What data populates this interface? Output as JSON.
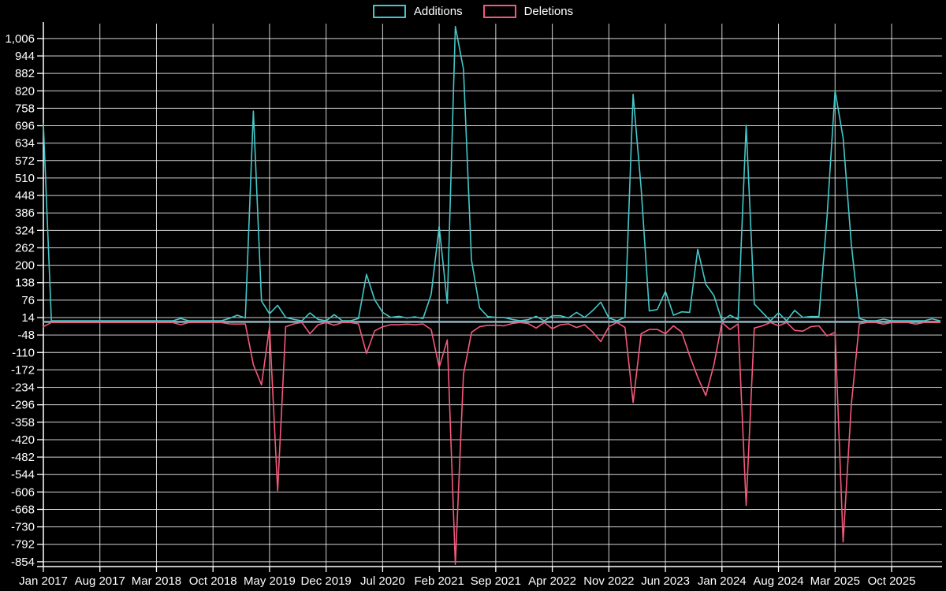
{
  "legend": {
    "additions_label": "Additions",
    "deletions_label": "Deletions"
  },
  "colors": {
    "background": "#000000",
    "additions": "#45c7c9",
    "deletions": "#f4597b",
    "grid": "#ffffff",
    "axis": "#ffffff",
    "text": "#ffffff",
    "baseline_overlap": "#8fb6c2"
  },
  "chart_data": {
    "type": "line",
    "title": "",
    "xlabel": "",
    "ylabel": "",
    "legend_position": "top",
    "grid": true,
    "y_axis": {
      "min": -854,
      "max": 1006,
      "tick_step": 62
    },
    "y_tick_labels": [
      "1,006",
      "944",
      "882",
      "820",
      "758",
      "696",
      "634",
      "572",
      "510",
      "448",
      "386",
      "324",
      "262",
      "200",
      "138",
      "76",
      "14",
      "-48",
      "-110",
      "-172",
      "-234",
      "-296",
      "-358",
      "-420",
      "-482",
      "-544",
      "-606",
      "-668",
      "-730",
      "-792",
      "-854"
    ],
    "x_tick_labels": [
      "Jan 2017",
      "Aug 2017",
      "Mar 2018",
      "Oct 2018",
      "May 2019",
      "Dec 2019",
      "Jul 2020",
      "Feb 2021",
      "Sep 2021",
      "Apr 2022",
      "Nov 2022",
      "Jun 2023",
      "Jan 2024",
      "Aug 2024",
      "Mar 2025",
      "Oct 2025"
    ],
    "x_tick_interval_months": 7,
    "x": [
      "2017-01",
      "2017-02",
      "2017-03",
      "2017-04",
      "2017-05",
      "2017-06",
      "2017-07",
      "2017-08",
      "2017-09",
      "2017-10",
      "2017-11",
      "2017-12",
      "2018-01",
      "2018-02",
      "2018-03",
      "2018-04",
      "2018-05",
      "2018-06",
      "2018-07",
      "2018-08",
      "2018-09",
      "2018-10",
      "2018-11",
      "2018-12",
      "2019-01",
      "2019-02",
      "2019-03",
      "2019-04",
      "2019-05",
      "2019-06",
      "2019-07",
      "2019-08",
      "2019-09",
      "2019-10",
      "2019-11",
      "2019-12",
      "2020-01",
      "2020-02",
      "2020-03",
      "2020-04",
      "2020-05",
      "2020-06",
      "2020-07",
      "2020-08",
      "2020-09",
      "2020-10",
      "2020-11",
      "2020-12",
      "2021-01",
      "2021-02",
      "2021-03",
      "2021-04",
      "2021-05",
      "2021-06",
      "2021-07",
      "2021-08",
      "2021-09",
      "2021-10",
      "2021-11",
      "2021-12",
      "2022-01",
      "2022-02",
      "2022-03",
      "2022-04",
      "2022-05",
      "2022-06",
      "2022-07",
      "2022-08",
      "2022-09",
      "2022-10",
      "2022-11",
      "2022-12",
      "2023-01",
      "2023-02",
      "2023-03",
      "2023-04",
      "2023-05",
      "2023-06",
      "2023-07",
      "2023-08",
      "2023-09",
      "2023-10",
      "2023-11",
      "2023-12",
      "2024-01",
      "2024-02",
      "2024-03",
      "2024-04",
      "2024-05",
      "2024-06",
      "2024-07",
      "2024-08",
      "2024-09",
      "2024-10",
      "2024-11",
      "2024-12",
      "2025-01",
      "2025-02",
      "2025-03",
      "2025-04",
      "2025-05",
      "2025-06",
      "2025-07",
      "2025-08",
      "2025-09",
      "2025-10",
      "2025-11",
      "2025-12",
      "2026-01",
      "2026-02",
      "2026-03",
      "2026-04"
    ],
    "series": [
      {
        "name": "Additions",
        "color": "#45c7c9",
        "values": [
          700,
          0,
          0,
          0,
          0,
          0,
          0,
          0,
          0,
          0,
          0,
          0,
          0,
          0,
          0,
          0,
          0,
          8,
          0,
          0,
          0,
          0,
          0,
          8,
          20,
          10,
          745,
          70,
          25,
          55,
          12,
          5,
          0,
          28,
          5,
          0,
          22,
          0,
          0,
          8,
          165,
          75,
          30,
          12,
          16,
          10,
          14,
          8,
          93,
          335,
          62,
          1046,
          895,
          215,
          46,
          15,
          12,
          12,
          5,
          0,
          4,
          16,
          0,
          18,
          18,
          10,
          30,
          12,
          36,
          66,
          10,
          0,
          12,
          805,
          470,
          35,
          40,
          105,
          20,
          32,
          30,
          254,
          130,
          90,
          0,
          20,
          5,
          695,
          60,
          30,
          0,
          28,
          0,
          37,
          12,
          15,
          15,
          365,
          818,
          650,
          276,
          8,
          0,
          0,
          6,
          0,
          0,
          0,
          0,
          0,
          7,
          0
        ]
      },
      {
        "name": "Deletions",
        "color": "#f4597b",
        "values": [
          -15,
          0,
          0,
          0,
          0,
          0,
          0,
          0,
          0,
          0,
          0,
          0,
          0,
          0,
          0,
          0,
          0,
          -8,
          0,
          0,
          0,
          0,
          0,
          -5,
          -6,
          -5,
          -150,
          -222,
          -15,
          -598,
          -15,
          -5,
          0,
          -40,
          -8,
          0,
          -10,
          0,
          0,
          -5,
          -110,
          -30,
          -15,
          -8,
          -8,
          -6,
          -8,
          -5,
          -25,
          -160,
          -62,
          -860,
          -185,
          -35,
          -15,
          -10,
          -10,
          -12,
          -4,
          0,
          -4,
          -20,
          0,
          -22,
          -8,
          -5,
          -18,
          -8,
          -34,
          -68,
          -15,
          0,
          -18,
          -285,
          -40,
          -25,
          -25,
          -40,
          -12,
          -34,
          -118,
          -195,
          -260,
          -150,
          0,
          -25,
          -5,
          -650,
          -20,
          -12,
          0,
          -12,
          0,
          -28,
          -31,
          -15,
          -12,
          -48,
          -35,
          -780,
          -296,
          -5,
          0,
          0,
          -6,
          0,
          0,
          0,
          -6,
          0,
          0,
          0
        ]
      }
    ]
  }
}
